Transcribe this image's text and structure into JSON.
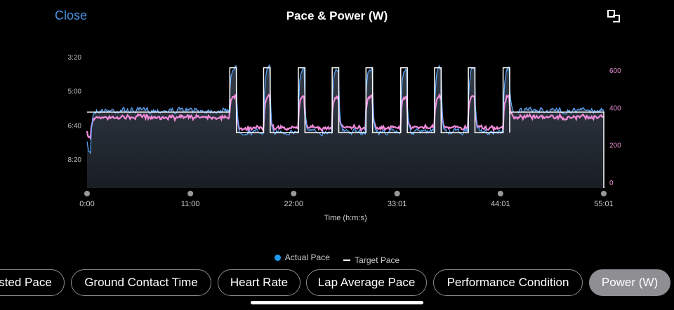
{
  "header": {
    "close_label": "Close",
    "title": "Pace & Power (W)",
    "expand_icon": "expand-icon"
  },
  "chart_data": {
    "type": "line",
    "x_label": "Time (h:m:s)",
    "x_ticks": [
      "0:00",
      "11:00",
      "22:00",
      "33:01",
      "44:01",
      "55:01"
    ],
    "x_range_minutes": [
      0,
      55.02
    ],
    "y_left_ticks": [
      "3:20",
      "5:00",
      "6:40",
      "8:20"
    ],
    "y_left_note": "pace axis inverted (faster pace at top)",
    "y_right_ticks": [
      "600",
      "400",
      "200",
      "0"
    ],
    "y_right_range": [
      0,
      600
    ],
    "legend": [
      {
        "name": "Actual Pace",
        "color": "#1e9bf0",
        "marker": "dot"
      },
      {
        "name": "Target Pace",
        "color": "#ffffff",
        "marker": "dash"
      }
    ],
    "series_colors": {
      "actual_pace": "#5aa8ff",
      "target_pace": "#ffffff",
      "power": "#f08ad9"
    },
    "target_pace_intervals": {
      "warmup": {
        "start_min": 0,
        "end_min": 15.2,
        "pace": "6:00"
      },
      "work_pace": "3:50",
      "recovery_pace": "7:00",
      "work_intervals_minutes": [
        [
          15.2,
          15.9
        ],
        [
          18.8,
          19.5
        ],
        [
          22.5,
          23.2
        ],
        [
          26.1,
          26.8
        ],
        [
          29.7,
          30.4
        ],
        [
          33.4,
          34.1
        ],
        [
          37.0,
          37.7
        ],
        [
          40.6,
          41.3
        ],
        [
          44.3,
          45.0
        ]
      ],
      "cooldown": {
        "start_min": 45.0,
        "end_min": 55.02,
        "pace": "6:00"
      }
    }
  },
  "legend": {
    "actual_pace": "Actual Pace",
    "target_pace": "Target Pace"
  },
  "chips": [
    {
      "label": "sted Pace",
      "active": false
    },
    {
      "label": "Ground Contact Time",
      "active": false
    },
    {
      "label": "Heart Rate",
      "active": false
    },
    {
      "label": "Lap Average Pace",
      "active": false
    },
    {
      "label": "Performance Condition",
      "active": false
    },
    {
      "label": "Power (W)",
      "active": true
    }
  ]
}
